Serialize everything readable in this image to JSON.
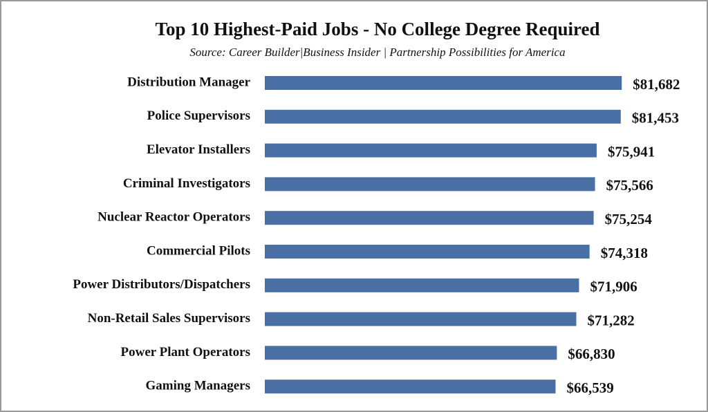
{
  "chart_data": {
    "type": "bar",
    "orientation": "horizontal",
    "title": "Top 10 Highest-Paid Jobs - No College Degree Required",
    "subtitle": "Source: Career Builder|Business Insider | Partnership Possibilities for America",
    "categories": [
      "Distribution Manager",
      "Police Supervisors",
      "Elevator Installers",
      "Criminal Investigators",
      "Nuclear Reactor Operators",
      "Commercial Pilots",
      "Power Distributors/Dispatchers",
      "Non-Retail Sales Supervisors",
      "Power Plant Operators",
      "Gaming Managers"
    ],
    "values": [
      81682,
      81453,
      75941,
      75566,
      75254,
      74318,
      71906,
      71282,
      66830,
      66539
    ],
    "value_labels": [
      "$81,682",
      "$81,453",
      "$75,941",
      "$75,566",
      "$75,254",
      "$74,318",
      "$71,906",
      "$71,282",
      "$66,830",
      "$66,539"
    ],
    "color": "#4a6fa5"
  }
}
